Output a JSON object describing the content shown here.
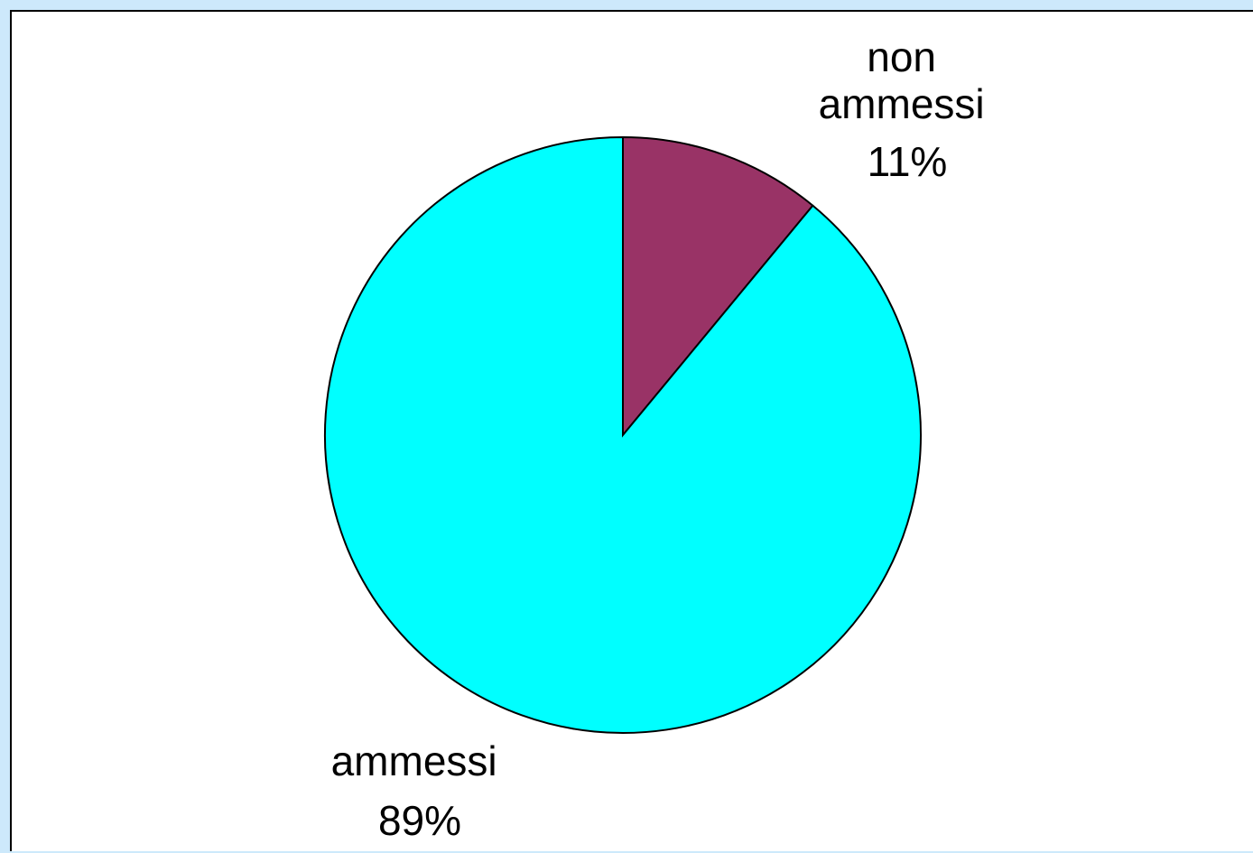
{
  "chart_data": {
    "type": "pie",
    "start_angle_deg": 0,
    "direction": "clockwise",
    "slices": [
      {
        "label_line1": "non",
        "label_line2": "ammessi",
        "pct_text": "11%",
        "value": 11,
        "color": "#993366"
      },
      {
        "label_line1": "ammessi",
        "label_line2": "",
        "pct_text": "89%",
        "value": 89,
        "color": "#00ffff"
      }
    ],
    "background": "#ffffff",
    "page_background": "#cde9fb"
  }
}
